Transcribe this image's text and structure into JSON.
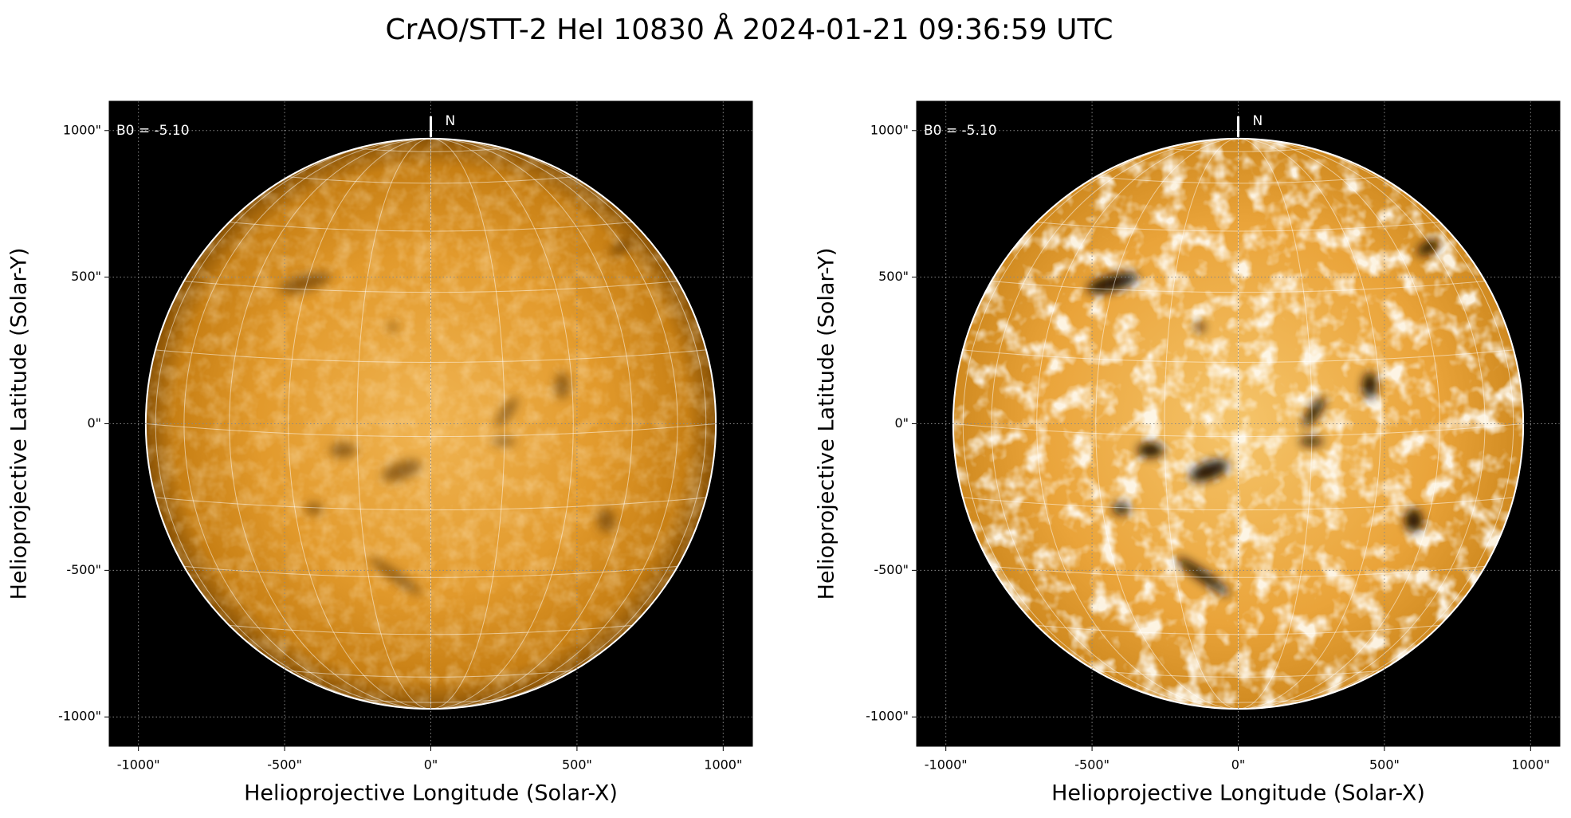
{
  "title": "CrAO/STT-2 HeI 10830 Å 2024-01-21 09:36:59 UTC",
  "chart_data": [
    {
      "type": "image",
      "xlabel": "Helioprojective Longitude (Solar-X)",
      "ylabel": "Helioprojective Latitude (Solar-Y)",
      "xlim": [
        -1100,
        1100
      ],
      "ylim": [
        -1100,
        1100
      ],
      "xticks": [
        {
          "value": -1000,
          "label": "-1000\""
        },
        {
          "value": -500,
          "label": "-500\""
        },
        {
          "value": 0,
          "label": "0\""
        },
        {
          "value": 500,
          "label": "500\""
        },
        {
          "value": 1000,
          "label": "1000\""
        }
      ],
      "yticks": [
        {
          "value": -1000,
          "label": "-1000\""
        },
        {
          "value": -500,
          "label": "-500\""
        },
        {
          "value": 0,
          "label": "0\""
        },
        {
          "value": 500,
          "label": "500\""
        },
        {
          "value": 1000,
          "label": "1000\""
        }
      ],
      "annotations": [
        "B0 = -5.10",
        "N"
      ],
      "contrast": "normal"
    },
    {
      "type": "image",
      "xlabel": "Helioprojective Longitude (Solar-X)",
      "ylabel": "Helioprojective Latitude (Solar-Y)",
      "xlim": [
        -1100,
        1100
      ],
      "ylim": [
        -1100,
        1100
      ],
      "xticks": [
        {
          "value": -1000,
          "label": "-1000\""
        },
        {
          "value": -500,
          "label": "-500\""
        },
        {
          "value": 0,
          "label": "0\""
        },
        {
          "value": 500,
          "label": "500\""
        },
        {
          "value": 1000,
          "label": "1000\""
        }
      ],
      "yticks": [
        {
          "value": -1000,
          "label": "-1000\""
        },
        {
          "value": -500,
          "label": "-500\""
        },
        {
          "value": 0,
          "label": "0\""
        },
        {
          "value": 500,
          "label": "500\""
        },
        {
          "value": 1000,
          "label": "1000\""
        }
      ],
      "annotations": [
        "B0 = -5.10",
        "N"
      ],
      "contrast": "high"
    }
  ]
}
